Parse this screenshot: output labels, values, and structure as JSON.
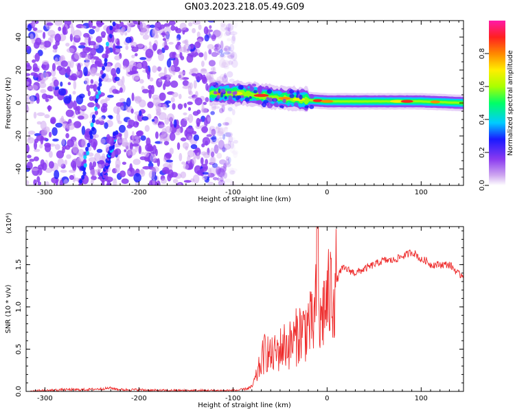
{
  "title": "GN03.2023.218.05.49.G09",
  "colors": {
    "snr_line": "#ee2a2a",
    "frame": "#000000",
    "background": "#ffffff",
    "colormap": [
      "#cfa8f0",
      "#8a3af0",
      "#1a1aff",
      "#00ccff",
      "#00ff66",
      "#aaff00",
      "#ffee00",
      "#ff8800",
      "#ff2020",
      "#ff1aa8"
    ]
  },
  "chart_data": [
    {
      "type": "heatmap",
      "title": "",
      "xlabel": "Height of straight line (km)",
      "ylabel": "Frequency (Hz)",
      "xlim": [
        -320,
        145
      ],
      "ylim": [
        -50,
        50
      ],
      "xticks": [
        -300,
        -200,
        -100,
        0,
        100
      ],
      "yticks": [
        -40,
        -20,
        0,
        20,
        40
      ],
      "colorbar": {
        "label": "Normalized spectral amplitude",
        "range": [
          0,
          1
        ],
        "ticks": [
          "0.0",
          "0.2",
          "0.4",
          "0.6",
          "0.8"
        ]
      },
      "features": [
        {
          "name": "noise field",
          "x_range": [
            -320,
            -97
          ],
          "y_range": [
            -50,
            50
          ]
        },
        {
          "name": "diagonal trace A",
          "x_start": -262,
          "y_start": -50,
          "x_end": -228,
          "y_end": 48
        },
        {
          "name": "diagonal trace B",
          "x_start": -237,
          "y_start": -45,
          "x_end": -225,
          "y_end": -18
        },
        {
          "name": "signal band",
          "x_range": [
            -125,
            145
          ],
          "center_hz": [
            [
              -125,
              6
            ],
            [
              -100,
              6
            ],
            [
              -75,
              5
            ],
            [
              -50,
              3
            ],
            [
              -25,
              2
            ],
            [
              0,
              1
            ],
            [
              50,
              1
            ],
            [
              100,
              1
            ],
            [
              145,
              0
            ]
          ]
        }
      ],
      "grid": false,
      "legend": "colorbar-right"
    },
    {
      "type": "line",
      "title": "",
      "xlabel": "Height of straight line (km)",
      "ylabel": "SNR (10 * v/v)",
      "y_scale_label": "(x10⁴)",
      "xlim": [
        -320,
        145
      ],
      "ylim": [
        0,
        1.95
      ],
      "xticks": [
        -300,
        -200,
        -100,
        0,
        100
      ],
      "yticks": [
        "0.0",
        "0.5",
        "1.0",
        "1.5"
      ],
      "grid": false,
      "legend": "none",
      "series": [
        {
          "x": [
            -320,
            -300,
            -280,
            -260,
            -240,
            -230,
            -220,
            -200,
            -180,
            -160,
            -140,
            -120,
            -100,
            -90,
            -80,
            -75,
            -70,
            -65,
            -60,
            -55,
            -50,
            -45,
            -40,
            -35,
            -30,
            -25,
            -20,
            -15,
            -12,
            -10,
            -8,
            -5,
            0,
            5,
            10,
            15,
            20,
            30,
            40,
            50,
            60,
            70,
            80,
            85,
            90,
            95,
            100,
            105,
            110,
            120,
            130,
            135,
            140,
            145
          ],
          "y": [
            0.0,
            0.01,
            0.02,
            0.02,
            0.03,
            0.04,
            0.02,
            0.02,
            0.01,
            0.01,
            0.01,
            0.01,
            0.01,
            0.02,
            0.05,
            0.18,
            0.35,
            0.5,
            0.4,
            0.45,
            0.5,
            0.55,
            0.55,
            0.6,
            0.7,
            0.72,
            0.8,
            0.75,
            1.0,
            1.95,
            0.7,
            0.95,
            1.05,
            1.2,
            1.3,
            1.45,
            1.45,
            1.4,
            1.45,
            1.5,
            1.55,
            1.55,
            1.6,
            1.62,
            1.65,
            1.62,
            1.55,
            1.55,
            1.5,
            1.5,
            1.5,
            1.45,
            1.38,
            1.38
          ]
        }
      ]
    }
  ]
}
